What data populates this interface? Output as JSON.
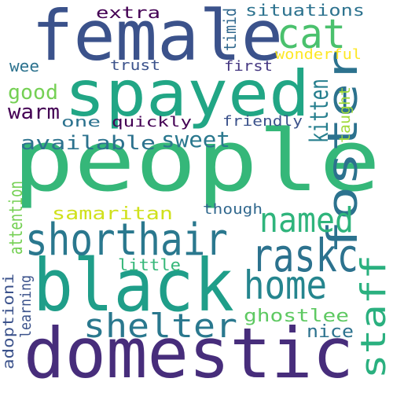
{
  "words": [
    {
      "text": "people",
      "color": "#35b779"
    },
    {
      "text": "female",
      "color": "#3b528b"
    },
    {
      "text": "spayed",
      "color": "#21a685"
    },
    {
      "text": "black",
      "color": "#1f9e89"
    },
    {
      "text": "domestic",
      "color": "#472d7b"
    },
    {
      "text": "shorthair",
      "color": "#2a788e"
    },
    {
      "text": "foster",
      "color": "#2c728e"
    },
    {
      "text": "cat",
      "color": "#4ac16d"
    },
    {
      "text": "named",
      "color": "#2fb47c"
    },
    {
      "text": "raskc",
      "color": "#2c728e"
    },
    {
      "text": "home",
      "color": "#25858e"
    },
    {
      "text": "staff",
      "color": "#2ab07f"
    },
    {
      "text": "shelter",
      "color": "#2a788e"
    },
    {
      "text": "kitten",
      "color": "#277f8e"
    },
    {
      "text": "extra",
      "color": "#440154"
    },
    {
      "text": "situations",
      "color": "#2c728e"
    },
    {
      "text": "timid",
      "color": "#31688e"
    },
    {
      "text": "wee",
      "color": "#2c728e"
    },
    {
      "text": "trust",
      "color": "#3b528b"
    },
    {
      "text": "first",
      "color": "#453781"
    },
    {
      "text": "wonderful",
      "color": "#fde725"
    },
    {
      "text": "good",
      "color": "#75d054"
    },
    {
      "text": "warm",
      "color": "#440154"
    },
    {
      "text": "one",
      "color": "#2c728e"
    },
    {
      "text": "quickly",
      "color": "#440154"
    },
    {
      "text": "friendly",
      "color": "#3b528b"
    },
    {
      "text": "taught",
      "color": "#a0da39"
    },
    {
      "text": "available",
      "color": "#2c728e"
    },
    {
      "text": "sweet",
      "color": "#2a788e"
    },
    {
      "text": "attention",
      "color": "#75d054"
    },
    {
      "text": "samaritan",
      "color": "#d0e11c"
    },
    {
      "text": "though",
      "color": "#31688e"
    },
    {
      "text": "little",
      "color": "#35b779"
    },
    {
      "text": "adoptioni",
      "color": "#3b528b"
    },
    {
      "text": "learning",
      "color": "#3b528b"
    },
    {
      "text": "ghostlee",
      "color": "#5ec962"
    },
    {
      "text": "nice",
      "color": "#2c728e"
    }
  ]
}
